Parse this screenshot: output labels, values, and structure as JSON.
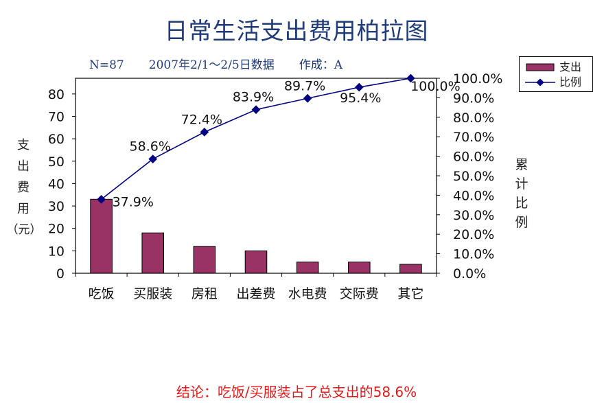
{
  "title": "日常生活支出费用柏拉图",
  "subtitle": {
    "n": "N=87",
    "period": "2007年2/1～2/5日数据",
    "author": "作成：A"
  },
  "conclusion": "结论：吃饭/买服装占了总支出的58.6%",
  "colors": {
    "bar": "#993366",
    "line": "#000080",
    "title": "#1f3b7a",
    "conclusion": "#e01b1b"
  },
  "chart_data": {
    "type": "bar",
    "categories": [
      "吃饭",
      "买服装",
      "房租",
      "出差费",
      "水电费",
      "交际费",
      "其它"
    ],
    "series": [
      {
        "name": "支出",
        "type": "bar",
        "axis": "left",
        "values": [
          33,
          18,
          12,
          10,
          5,
          5,
          4
        ]
      },
      {
        "name": "比例",
        "type": "line",
        "axis": "right",
        "values": [
          37.9,
          58.6,
          72.4,
          83.9,
          89.7,
          95.4,
          100.0
        ]
      }
    ],
    "data_labels": [
      "37.9%",
      "58.6%",
      "72.4%",
      "83.9%",
      "89.7%",
      "95.4%",
      "100.0%"
    ],
    "ylabel": "支出费用（元）",
    "ylabel_right": "累计比例",
    "ylim": [
      0,
      87
    ],
    "yticks": [
      "0",
      "10",
      "20",
      "30",
      "40",
      "50",
      "60",
      "70",
      "80"
    ],
    "ylim_right": [
      0,
      100
    ],
    "yticks_right": [
      "0.0%",
      "10.0%",
      "20.0%",
      "30.0%",
      "40.0%",
      "50.0%",
      "60.0%",
      "70.0%",
      "80.0%",
      "90.0%",
      "100.0%"
    ],
    "legend": [
      "支出",
      "比例"
    ],
    "legend_position": "top-right",
    "grid": false
  }
}
